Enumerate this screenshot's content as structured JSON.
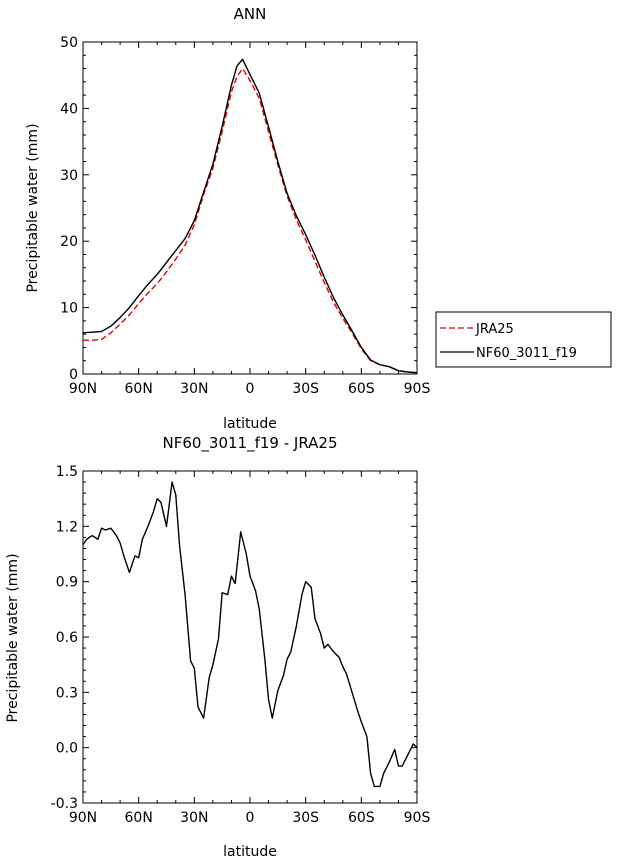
{
  "chart_data": [
    {
      "type": "line",
      "title": "ANN",
      "xlabel": "latitude",
      "ylabel": "Precipitable water (mm)",
      "xlim": [
        90,
        -90
      ],
      "ylim": [
        0,
        50
      ],
      "xticks": [
        90,
        60,
        30,
        0,
        -30,
        -60,
        -90
      ],
      "xtick_labels": [
        "90N",
        "60N",
        "30N",
        "0",
        "30S",
        "60S",
        "90S"
      ],
      "yticks": [
        0,
        10,
        20,
        30,
        40,
        50
      ],
      "ytick_labels": [
        "0",
        "10",
        "20",
        "30",
        "40",
        "50"
      ],
      "legend_position": "right, outside plot",
      "series": [
        {
          "name": "JRA25",
          "color": "#e00000",
          "dash": "dashed",
          "x": [
            90,
            85,
            80,
            75,
            70,
            65,
            60,
            55,
            50,
            45,
            40,
            35,
            30,
            25,
            20,
            15,
            10,
            7,
            4,
            0,
            -5,
            -10,
            -15,
            -20,
            -25,
            -30,
            -35,
            -40,
            -45,
            -50,
            -55,
            -60,
            -65,
            -70,
            -75,
            -80,
            -85,
            -90
          ],
          "values": [
            5.1,
            5.1,
            5.2,
            6.2,
            7.5,
            8.9,
            10.6,
            12.2,
            13.6,
            15.4,
            17.3,
            19.4,
            22.5,
            27,
            31,
            36.5,
            42.5,
            44.8,
            46,
            44.2,
            41.5,
            36.5,
            31.5,
            26.8,
            23.2,
            20.2,
            17,
            13.8,
            10.8,
            8.4,
            6.2,
            3.8,
            2,
            1.4,
            1.1,
            0.5,
            0.3,
            0.2
          ]
        },
        {
          "name": "NF60_3011_f19",
          "color": "#000000",
          "dash": "solid",
          "x": [
            90,
            85,
            80,
            75,
            70,
            65,
            60,
            55,
            50,
            45,
            40,
            35,
            30,
            25,
            20,
            15,
            10,
            7,
            4,
            0,
            -5,
            -10,
            -15,
            -20,
            -25,
            -30,
            -35,
            -40,
            -45,
            -50,
            -55,
            -60,
            -65,
            -70,
            -75,
            -80,
            -85,
            -90
          ],
          "values": [
            6.2,
            6.3,
            6.4,
            7.2,
            8.5,
            10,
            11.8,
            13.5,
            15,
            16.8,
            18.6,
            20.4,
            23.1,
            27.4,
            31.6,
            37.3,
            43.5,
            46.4,
            47.4,
            45.1,
            42.3,
            37.2,
            32,
            27.2,
            23.8,
            21,
            17.9,
            14.6,
            11.5,
            8.9,
            6.5,
            4,
            2.1,
            1.4,
            1.1,
            0.5,
            0.3,
            0.2
          ]
        }
      ],
      "legend": [
        "JRA25",
        "NF60_3011_f19"
      ]
    },
    {
      "type": "line",
      "title": "NF60_3011_f19 - JRA25",
      "xlabel": "latitude",
      "ylabel": "Precipitable water (mm)",
      "xlim": [
        90,
        -90
      ],
      "ylim": [
        -0.3,
        1.5
      ],
      "xticks": [
        90,
        60,
        30,
        0,
        -30,
        -60,
        -90
      ],
      "xtick_labels": [
        "90N",
        "60N",
        "30N",
        "0",
        "30S",
        "60S",
        "90S"
      ],
      "yticks": [
        -0.3,
        0,
        0.3,
        0.6,
        0.9,
        1.2,
        1.5
      ],
      "ytick_labels": [
        "-0.3",
        "0.0",
        "0.3",
        "0.6",
        "0.9",
        "1.2",
        "1.5"
      ],
      "series": [
        {
          "name": "NF60_3011_f19 - JRA25",
          "color": "#000000",
          "dash": "solid",
          "x": [
            90,
            88,
            85,
            82,
            80,
            78,
            75,
            72,
            70,
            68,
            65,
            62,
            60,
            58,
            55,
            52,
            50,
            48,
            45,
            42,
            40,
            38,
            35,
            32,
            30,
            28,
            25,
            22,
            20,
            17,
            15,
            12,
            10,
            8,
            5,
            2,
            0,
            -3,
            -5,
            -8,
            -10,
            -12,
            -15,
            -18,
            -20,
            -22,
            -25,
            -28,
            -30,
            -33,
            -35,
            -38,
            -40,
            -42,
            -45,
            -48,
            -50,
            -52,
            -55,
            -58,
            -60,
            -63,
            -65,
            -67,
            -70,
            -72,
            -75,
            -78,
            -80,
            -82,
            -85,
            -88,
            -90
          ],
          "values": [
            1.1,
            1.13,
            1.15,
            1.13,
            1.19,
            1.18,
            1.19,
            1.15,
            1.11,
            1.04,
            0.95,
            1.04,
            1.03,
            1.13,
            1.2,
            1.28,
            1.35,
            1.33,
            1.2,
            1.44,
            1.37,
            1.1,
            0.83,
            0.47,
            0.43,
            0.22,
            0.16,
            0.38,
            0.45,
            0.59,
            0.84,
            0.83,
            0.93,
            0.89,
            1.17,
            1.05,
            0.93,
            0.85,
            0.75,
            0.48,
            0.26,
            0.16,
            0.31,
            0.39,
            0.48,
            0.52,
            0.66,
            0.83,
            0.9,
            0.87,
            0.7,
            0.62,
            0.54,
            0.56,
            0.52,
            0.49,
            0.44,
            0.4,
            0.3,
            0.2,
            0.14,
            0.06,
            -0.14,
            -0.21,
            -0.21,
            -0.14,
            -0.08,
            -0.01,
            -0.1,
            -0.1,
            -0.04,
            0.02,
            0.0
          ]
        }
      ]
    }
  ]
}
